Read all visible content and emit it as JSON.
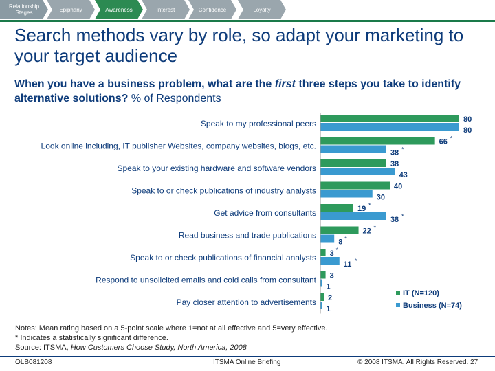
{
  "nav": {
    "stages": [
      {
        "label": "Relationship Stages",
        "color": "#8a9aa3"
      },
      {
        "label": "Epiphany",
        "color": "#9aa6ad"
      },
      {
        "label": "Awareness",
        "color": "#2c8a52"
      },
      {
        "label": "Interest",
        "color": "#9aa6ad"
      },
      {
        "label": "Confidence",
        "color": "#9aa6ad"
      },
      {
        "label": "Loyalty",
        "color": "#9aa6ad"
      }
    ]
  },
  "title": "Search methods vary by role, so adapt your marketing to your target audience",
  "question": {
    "part1": "When you have a business problem, what are the ",
    "emphasis": "first",
    "part2": " three steps you take to identify alternative solutions?",
    "suffix": " % of Respondents"
  },
  "chart_data": {
    "type": "bar",
    "orientation": "horizontal",
    "categories": [
      "Speak to my professional peers",
      "Look online including, IT publisher Websites, company websites, blogs, etc.",
      "Speak to your existing hardware and software vendors",
      "Speak to or check publications of industry analysts",
      "Get advice from consultants",
      "Read business and trade publications",
      "Speak to or check publications of financial analysts",
      "Respond to unsolicited emails and cold calls from consultant",
      "Pay closer attention to advertisements"
    ],
    "series": [
      {
        "name": "IT (N=120)",
        "color": "#2e9a5c",
        "values": [
          80,
          66,
          38,
          40,
          19,
          22,
          3,
          3,
          2
        ],
        "significant": [
          false,
          true,
          false,
          false,
          true,
          true,
          true,
          false,
          false
        ]
      },
      {
        "name": "Business (N=74)",
        "color": "#3a9ad0",
        "values": [
          80,
          38,
          43,
          30,
          38,
          8,
          11,
          1,
          1
        ],
        "significant": [
          false,
          true,
          false,
          false,
          true,
          true,
          true,
          false,
          false
        ]
      }
    ],
    "xlim": [
      0,
      80
    ],
    "legend_position": "bottom-right"
  },
  "notes": [
    "Notes: Mean rating based on a 5-point scale where 1=not at all effective and 5=very effective.",
    "* Indicates a statistically significant difference."
  ],
  "source": {
    "prefix": "Source: ITSMA, ",
    "title": "How Customers Choose Study, North America, 2008"
  },
  "footer": {
    "code": "OLB081208",
    "center": "ITSMA Online Briefing",
    "right": "© 2008 ITSMA. All Rights Reserved. 27"
  }
}
